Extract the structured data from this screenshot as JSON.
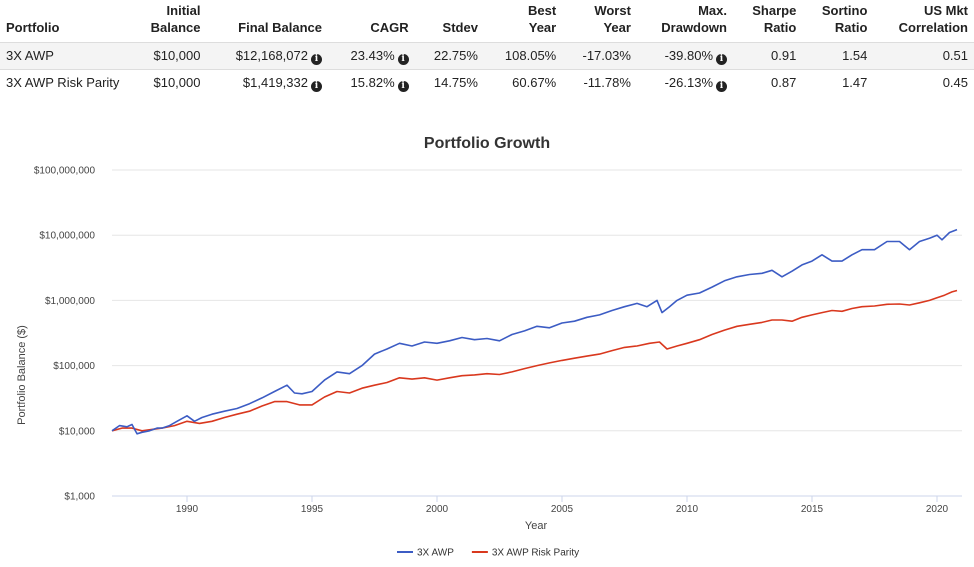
{
  "table": {
    "headers": [
      {
        "l1": "",
        "l2": "Portfolio"
      },
      {
        "l1": "Initial",
        "l2": "Balance"
      },
      {
        "l1": "",
        "l2": "Final Balance"
      },
      {
        "l1": "",
        "l2": "CAGR"
      },
      {
        "l1": "",
        "l2": "Stdev"
      },
      {
        "l1": "Best",
        "l2": "Year"
      },
      {
        "l1": "Worst",
        "l2": "Year"
      },
      {
        "l1": "Max.",
        "l2": "Drawdown"
      },
      {
        "l1": "Sharpe",
        "l2": "Ratio"
      },
      {
        "l1": "Sortino",
        "l2": "Ratio"
      },
      {
        "l1": "US Mkt",
        "l2": "Correlation"
      }
    ],
    "rows": [
      {
        "portfolio": "3X AWP",
        "initial": "$10,000",
        "final": "$12,168,072",
        "cagr": "23.43%",
        "stdev": "22.75%",
        "best": "108.05%",
        "worst": "-17.03%",
        "maxdd": "-39.80%",
        "sharpe": "0.91",
        "sortino": "1.54",
        "corr": "0.51"
      },
      {
        "portfolio": "3X AWP Risk Parity",
        "initial": "$10,000",
        "final": "$1,419,332",
        "cagr": "15.82%",
        "stdev": "14.75%",
        "best": "60.67%",
        "worst": "-11.78%",
        "maxdd": "-26.13%",
        "sharpe": "0.87",
        "sortino": "1.47",
        "corr": "0.45"
      }
    ]
  },
  "chart_data": {
    "type": "line",
    "title": "Portfolio Growth",
    "xlabel": "Year",
    "ylabel": "Portfolio Balance ($)",
    "yscale": "log",
    "ylim": [
      1000,
      100000000
    ],
    "xlim": [
      1987.0,
      2021.0
    ],
    "yticks": [
      1000,
      10000,
      100000,
      1000000,
      10000000,
      100000000
    ],
    "ytick_labels": [
      "$1,000",
      "$10,000",
      "$100,000",
      "$1,000,000",
      "$10,000,000",
      "$100,000,000"
    ],
    "xticks": [
      1990,
      1995,
      2000,
      2005,
      2010,
      2015,
      2020
    ],
    "xtick_labels": [
      "1990",
      "1995",
      "2000",
      "2005",
      "2010",
      "2015",
      "2020"
    ],
    "legend_position": "bottom-center",
    "series": [
      {
        "name": "3X AWP",
        "color": "#3c5cc4",
        "x": [
          1987.0,
          1987.3,
          1987.6,
          1987.8,
          1988.0,
          1988.2,
          1988.5,
          1988.8,
          1989.0,
          1989.3,
          1989.6,
          1990.0,
          1990.3,
          1990.6,
          1991.0,
          1991.5,
          1992.0,
          1992.5,
          1993.0,
          1993.5,
          1994.0,
          1994.3,
          1994.6,
          1995.0,
          1995.5,
          1996.0,
          1996.5,
          1997.0,
          1997.5,
          1998.0,
          1998.5,
          1999.0,
          1999.5,
          2000.0,
          2000.5,
          2001.0,
          2001.5,
          2002.0,
          2002.5,
          2003.0,
          2003.5,
          2004.0,
          2004.5,
          2005.0,
          2005.5,
          2006.0,
          2006.5,
          2007.0,
          2007.5,
          2008.0,
          2008.4,
          2008.8,
          2009.0,
          2009.3,
          2009.6,
          2010.0,
          2010.5,
          2011.0,
          2011.5,
          2012.0,
          2012.5,
          2013.0,
          2013.4,
          2013.8,
          2014.2,
          2014.6,
          2015.0,
          2015.4,
          2015.8,
          2016.2,
          2016.6,
          2017.0,
          2017.5,
          2018.0,
          2018.5,
          2018.9,
          2019.3,
          2019.7,
          2020.0,
          2020.2,
          2020.5,
          2020.8
        ],
        "values": [
          10000,
          12000,
          11500,
          12500,
          9000,
          9500,
          10000,
          11000,
          11000,
          12000,
          14000,
          17000,
          14000,
          16000,
          18000,
          20000,
          22000,
          26000,
          32000,
          40000,
          50000,
          38000,
          37000,
          40000,
          60000,
          80000,
          75000,
          100000,
          150000,
          180000,
          220000,
          200000,
          230000,
          220000,
          240000,
          270000,
          250000,
          260000,
          240000,
          300000,
          340000,
          400000,
          380000,
          450000,
          480000,
          550000,
          600000,
          700000,
          800000,
          900000,
          800000,
          1000000,
          650000,
          800000,
          1000000,
          1200000,
          1300000,
          1600000,
          2000000,
          2300000,
          2500000,
          2600000,
          2900000,
          2300000,
          2800000,
          3500000,
          4000000,
          5000000,
          4000000,
          4000000,
          5000000,
          6000000,
          6000000,
          8000000,
          8000000,
          6000000,
          8000000,
          9000000,
          10000000,
          8500000,
          11000000,
          12168072
        ]
      },
      {
        "name": "3X AWP Risk Parity",
        "color": "#d9381e",
        "x": [
          1987.0,
          1987.4,
          1987.8,
          1988.2,
          1988.6,
          1989.0,
          1989.5,
          1990.0,
          1990.5,
          1991.0,
          1991.5,
          1992.0,
          1992.5,
          1993.0,
          1993.5,
          1994.0,
          1994.5,
          1995.0,
          1995.5,
          1996.0,
          1996.5,
          1997.0,
          1997.5,
          1998.0,
          1998.5,
          1999.0,
          1999.5,
          2000.0,
          2000.5,
          2001.0,
          2001.5,
          2002.0,
          2002.5,
          2003.0,
          2003.5,
          2004.0,
          2004.5,
          2005.0,
          2005.5,
          2006.0,
          2006.5,
          2007.0,
          2007.5,
          2008.0,
          2008.5,
          2008.9,
          2009.2,
          2009.6,
          2010.0,
          2010.5,
          2011.0,
          2011.5,
          2012.0,
          2012.5,
          2013.0,
          2013.4,
          2013.8,
          2014.2,
          2014.6,
          2015.0,
          2015.4,
          2015.8,
          2016.2,
          2016.6,
          2017.0,
          2017.5,
          2018.0,
          2018.5,
          2018.9,
          2019.3,
          2019.7,
          2020.0,
          2020.3,
          2020.6,
          2020.8
        ],
        "values": [
          10000,
          11000,
          11000,
          10000,
          10500,
          11000,
          12000,
          14000,
          13000,
          14000,
          16000,
          18000,
          20000,
          24000,
          28000,
          28000,
          25000,
          25000,
          33000,
          40000,
          38000,
          45000,
          50000,
          55000,
          65000,
          62000,
          65000,
          60000,
          65000,
          70000,
          72000,
          75000,
          73000,
          80000,
          90000,
          100000,
          110000,
          120000,
          130000,
          140000,
          150000,
          170000,
          190000,
          200000,
          220000,
          230000,
          180000,
          200000,
          220000,
          250000,
          300000,
          350000,
          400000,
          430000,
          460000,
          500000,
          500000,
          480000,
          550000,
          600000,
          650000,
          700000,
          680000,
          750000,
          800000,
          820000,
          870000,
          880000,
          850000,
          920000,
          1000000,
          1100000,
          1200000,
          1350000,
          1419332
        ]
      }
    ]
  }
}
